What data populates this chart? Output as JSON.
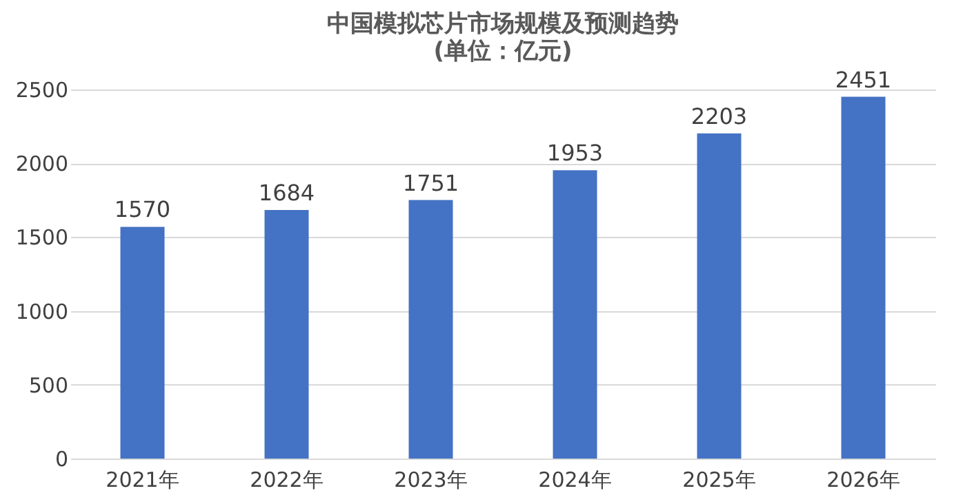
{
  "chart_data": {
    "type": "bar",
    "title": "中国模拟芯片市场规模及预测趋势",
    "subtitle": "(单位：亿元)",
    "categories": [
      "2021年",
      "2022年",
      "2023年",
      "2024年",
      "2025年",
      "2026年"
    ],
    "values": [
      1570,
      1684,
      1751,
      1953,
      2203,
      2451
    ],
    "color": "#4472c4",
    "ylim": [
      0,
      2500
    ],
    "yticks": [
      0,
      500,
      1000,
      1500,
      2000,
      2500
    ],
    "grid": "y",
    "data_labels": true
  }
}
